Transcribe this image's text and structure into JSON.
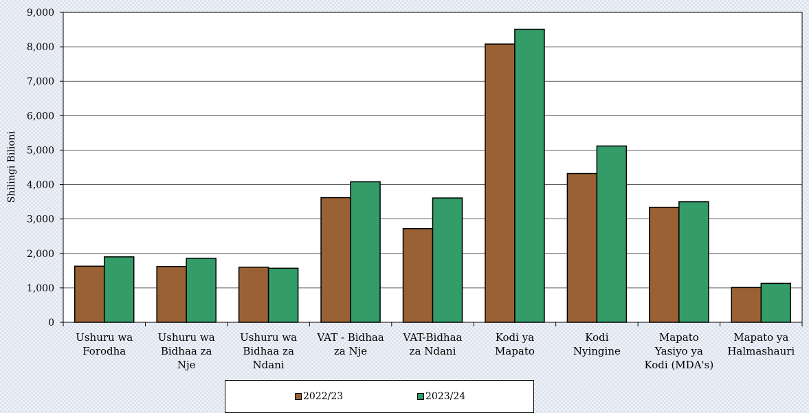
{
  "colors": {
    "series_2022": "#9a6234",
    "series_2023": "#339c69",
    "plot_bg": "#ffffff",
    "outline": "#000000"
  },
  "chart_data": {
    "type": "bar",
    "title": "",
    "xlabel": "",
    "ylabel": "Shilingi Bilioni",
    "ylim": [
      0,
      9000
    ],
    "yticks": [
      0,
      1000,
      2000,
      3000,
      4000,
      5000,
      6000,
      7000,
      8000,
      9000
    ],
    "ytick_labels": [
      "0",
      "1,000",
      "2,000",
      "3,000",
      "4,000",
      "5,000",
      "6,000",
      "7,000",
      "8,000",
      "9,000"
    ],
    "grid": "horizontal",
    "legend_position": "bottom",
    "categories": [
      [
        "Ushuru wa",
        "Forodha"
      ],
      [
        "Ushuru wa",
        "Bidhaa za",
        "Nje"
      ],
      [
        "Ushuru wa",
        "Bidhaa za",
        "Ndani"
      ],
      [
        "VAT - Bidhaa",
        "za Nje"
      ],
      [
        "VAT-Bidhaa",
        "za Ndani"
      ],
      [
        "Kodi ya",
        "Mapato"
      ],
      [
        "Kodi",
        "Nyingine"
      ],
      [
        "Mapato",
        "Yasiyo ya",
        "Kodi (MDA's)"
      ],
      [
        "Mapato ya",
        "Halmashauri"
      ]
    ],
    "series": [
      {
        "name": "2022/23",
        "values": [
          1630,
          1620,
          1600,
          3620,
          2720,
          8080,
          4320,
          3340,
          1010
        ]
      },
      {
        "name": "2023/24",
        "values": [
          1900,
          1860,
          1570,
          4080,
          3610,
          8510,
          5120,
          3500,
          1130
        ]
      }
    ]
  }
}
